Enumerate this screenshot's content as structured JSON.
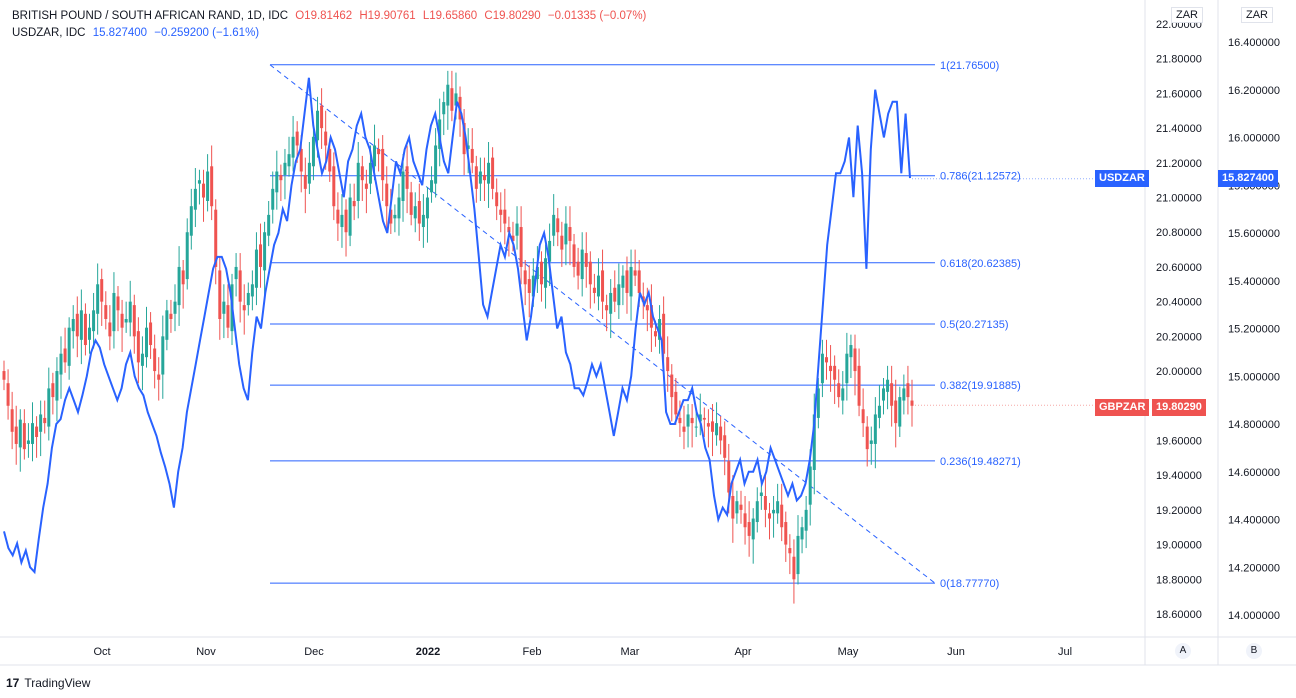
{
  "header": {
    "line1": {
      "symbol": "BRITISH POUND / SOUTH AFRICAN RAND, 1D, IDC",
      "open": "O19.81462",
      "high": "H19.90761",
      "low": "L19.65860",
      "close": "C19.80290",
      "change": "−0.01335 (−0.07%)"
    },
    "line2": {
      "symbol": "USDZAR, IDC",
      "value": "15.827400",
      "change": "−0.259200 (−1.61%)"
    }
  },
  "axes": {
    "unit_a": "ZAR",
    "unit_b": "ZAR",
    "scale_a_button": "A",
    "scale_b_button": "B"
  },
  "tags": {
    "usdzar_name": "USDZAR",
    "usdzar_value": "15.827400",
    "gbpzar_name": "GBPZAR",
    "gbpzar_value": "19.80290"
  },
  "brand": {
    "logo": "17",
    "name": "TradingView"
  },
  "colors": {
    "up": "#26a69a",
    "down": "#ef5350",
    "line": "#2962ff",
    "fib": "#2962ff"
  },
  "chart_data": {
    "type": "line",
    "x_labels": [
      "Oct",
      "Nov",
      "Dec",
      "2022",
      "Feb",
      "Mar",
      "Apr",
      "May",
      "Jun",
      "Jul"
    ],
    "y_left_ticks": [
      "22.00000",
      "21.80000",
      "21.60000",
      "21.40000",
      "21.20000",
      "21.00000",
      "20.80000",
      "20.60000",
      "20.40000",
      "20.20000",
      "20.00000",
      "19.80000",
      "19.60000",
      "19.40000",
      "19.20000",
      "19.00000",
      "18.80000",
      "18.60000"
    ],
    "y_right_ticks": [
      "16.400000",
      "16.200000",
      "16.000000",
      "15.800000",
      "15.600000",
      "15.400000",
      "15.200000",
      "15.000000",
      "14.800000",
      "14.600000",
      "14.400000",
      "14.200000",
      "14.000000"
    ],
    "fib_levels": [
      {
        "ratio": 1,
        "value": 21.765,
        "label": "1(21.76500)"
      },
      {
        "ratio": 0.786,
        "value": 21.12572,
        "label": "0.786(21.12572)"
      },
      {
        "ratio": 0.618,
        "value": 20.62385,
        "label": "0.618(20.62385)"
      },
      {
        "ratio": 0.5,
        "value": 20.27135,
        "label": "0.5(20.27135)"
      },
      {
        "ratio": 0.382,
        "value": 19.91885,
        "label": "0.382(19.91885)"
      },
      {
        "ratio": 0.236,
        "value": 19.48271,
        "label": "0.236(19.48271)"
      },
      {
        "ratio": 0,
        "value": 18.7777,
        "label": "0(18.77770)"
      }
    ],
    "series": [
      {
        "name": "GBPZAR",
        "kind": "candlestick",
        "close": [
          19.95,
          19.8,
          19.65,
          19.58,
          19.72,
          19.55,
          19.6,
          19.7,
          19.62,
          19.75,
          19.7,
          19.9,
          19.85,
          20.0,
          20.1,
          20.05,
          20.25,
          20.3,
          20.2,
          20.35,
          20.15,
          20.25,
          20.35,
          20.5,
          20.4,
          20.3,
          20.2,
          20.45,
          20.35,
          20.25,
          20.3,
          20.4,
          20.2,
          20.05,
          20.1,
          20.25,
          20.15,
          20.0,
          19.95,
          20.2,
          20.35,
          20.3,
          20.4,
          20.6,
          20.5,
          20.8,
          20.95,
          21.05,
          21.1,
          21.0,
          21.15,
          20.95,
          20.6,
          20.3,
          20.4,
          20.25,
          20.5,
          20.6,
          20.4,
          20.35,
          20.45,
          20.5,
          20.7,
          20.6,
          20.8,
          20.9,
          21.05,
          21.15,
          21.1,
          21.2,
          21.25,
          21.35,
          21.3,
          21.15,
          21.05,
          21.2,
          21.35,
          21.5,
          21.4,
          21.3,
          21.15,
          20.95,
          20.85,
          20.9,
          20.8,
          21.0,
          20.95,
          21.2,
          21.1,
          21.05,
          21.2,
          21.3,
          21.25,
          21.1,
          20.95,
          20.85,
          20.9,
          21.0,
          21.15,
          21.05,
          20.9,
          20.95,
          20.85,
          20.9,
          21.0,
          21.1,
          21.3,
          21.45,
          21.55,
          21.65,
          21.5,
          21.6,
          21.45,
          21.25,
          21.3,
          21.2,
          21.05,
          21.15,
          21.1,
          21.2,
          21.05,
          20.95,
          20.9,
          20.85,
          20.8,
          20.75,
          20.85,
          20.6,
          20.5,
          20.45,
          20.55,
          20.6,
          20.5,
          20.65,
          20.75,
          20.9,
          20.8,
          20.7,
          20.85,
          20.75,
          20.6,
          20.55,
          20.7,
          20.6,
          20.5,
          20.45,
          20.55,
          20.4,
          20.35,
          20.45,
          20.4,
          20.5,
          20.55,
          20.45,
          20.6,
          20.55,
          20.45,
          20.4,
          20.35,
          20.25,
          20.2,
          20.3,
          20.1,
          20.0,
          19.85,
          19.75,
          19.7,
          19.65,
          19.75,
          19.7,
          19.68,
          19.75,
          19.72,
          19.68,
          19.65,
          19.7,
          19.6,
          19.5,
          19.3,
          19.15,
          19.25,
          19.2,
          19.1,
          19.05,
          19.15,
          19.25,
          19.3,
          19.2,
          19.15,
          19.2,
          19.25,
          19.1,
          19.0,
          18.95,
          18.8,
          19.05,
          19.1,
          19.2,
          19.45,
          19.75,
          19.9,
          20.1,
          20.05,
          20.0,
          19.95,
          19.85,
          19.9,
          20.1,
          20.15,
          20.0,
          19.8,
          19.7,
          19.55,
          19.6,
          19.75,
          19.8,
          19.9,
          19.95,
          19.8,
          19.7,
          19.85,
          19.9,
          19.85,
          19.8
        ],
        "high_low_spread": "approx"
      },
      {
        "name": "USDZAR",
        "kind": "line",
        "values": [
          14.35,
          14.28,
          14.25,
          14.3,
          14.22,
          14.27,
          14.2,
          14.18,
          14.32,
          14.45,
          14.55,
          14.7,
          14.8,
          14.82,
          14.9,
          14.95,
          14.9,
          14.85,
          14.92,
          15.0,
          15.1,
          15.15,
          15.12,
          15.05,
          15.0,
          14.95,
          14.9,
          14.95,
          15.05,
          15.1,
          15.0,
          14.95,
          14.92,
          14.85,
          14.8,
          14.75,
          14.68,
          14.62,
          14.55,
          14.45,
          14.6,
          14.7,
          14.85,
          14.95,
          15.05,
          15.15,
          15.25,
          15.35,
          15.45,
          15.5,
          15.5,
          15.45,
          15.35,
          15.2,
          15.05,
          14.95,
          14.9,
          15.1,
          15.25,
          15.2,
          15.35,
          15.45,
          15.55,
          15.6,
          15.7,
          15.65,
          15.8,
          15.9,
          15.95,
          16.1,
          16.25,
          16.05,
          15.95,
          15.85,
          15.9,
          16.0,
          15.95,
          15.85,
          15.75,
          15.9,
          15.95,
          16.05,
          16.1,
          16.0,
          15.95,
          15.85,
          15.75,
          15.65,
          15.6,
          15.75,
          15.9,
          15.85,
          15.95,
          16.0,
          15.9,
          15.85,
          15.8,
          15.95,
          16.05,
          16.1,
          16.0,
          15.9,
          15.85,
          16.0,
          16.15,
          16.1,
          16.0,
          15.85,
          15.7,
          15.5,
          15.3,
          15.25,
          15.35,
          15.45,
          15.55,
          15.5,
          15.6,
          15.55,
          15.45,
          15.3,
          15.15,
          15.25,
          15.4,
          15.55,
          15.6,
          15.5,
          15.35,
          15.2,
          15.25,
          15.1,
          15.05,
          14.95,
          14.95,
          14.92,
          14.98,
          15.05,
          15.0,
          15.05,
          14.95,
          14.85,
          14.75,
          14.85,
          14.95,
          14.9,
          15.0,
          15.2,
          15.35,
          15.3,
          15.35,
          15.25,
          15.2,
          15.15,
          14.85,
          14.8,
          14.8,
          14.85,
          14.9,
          14.9,
          14.95,
          14.85,
          14.8,
          14.7,
          14.65,
          14.5,
          14.4,
          14.45,
          14.42,
          14.55,
          14.6,
          14.65,
          14.55,
          14.6,
          14.6,
          14.65,
          14.55,
          14.6,
          14.7,
          14.65,
          14.6,
          14.55,
          14.5,
          14.55,
          14.48,
          14.5,
          14.55,
          14.65,
          14.8,
          15.05,
          15.3,
          15.55,
          15.7,
          15.85,
          15.85,
          15.9,
          16.0,
          15.75,
          16.05,
          15.85,
          15.45,
          15.95,
          16.2,
          16.1,
          16.0,
          16.1,
          16.15,
          16.15,
          15.85,
          16.1,
          15.83
        ]
      }
    ],
    "xlim": [
      "2021-09-07",
      "2022-07-20"
    ],
    "ylim_left": [
      18.5,
      22.05
    ],
    "ylim_right": [
      13.9,
      16.55
    ]
  }
}
